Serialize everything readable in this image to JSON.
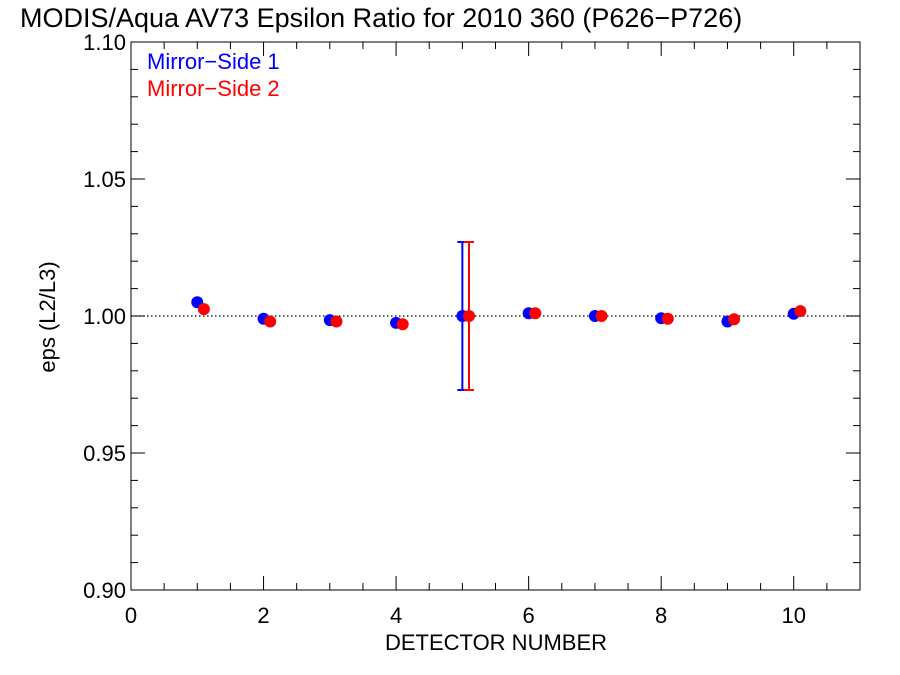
{
  "chart_data": {
    "type": "scatter",
    "title": "MODIS/Aqua AV73 Epsilon Ratio for 2010 360 (P626−P726)",
    "xlabel": "DETECTOR NUMBER",
    "ylabel": "eps (L2/L3)",
    "xlim": [
      0,
      11
    ],
    "ylim": [
      0.9,
      1.1
    ],
    "x_ticks": [
      0,
      2,
      4,
      6,
      8,
      10
    ],
    "x_tick_labels": [
      "0",
      "2",
      "4",
      "6",
      "8",
      "10"
    ],
    "y_ticks": [
      0.9,
      0.95,
      1.0,
      1.05,
      1.1
    ],
    "y_tick_labels": [
      "0.90",
      "0.95",
      "1.00",
      "1.05",
      "1.10"
    ],
    "reference_line": {
      "y": 1.0,
      "style": "dotted",
      "color": "#000000"
    },
    "grid": false,
    "legend_position": "top-left",
    "series": [
      {
        "name": "Mirror−Side 1",
        "color": "#0000ff",
        "x": [
          1,
          2,
          3,
          4,
          5,
          6,
          7,
          8,
          9,
          10
        ],
        "values": [
          1.005,
          0.999,
          0.9985,
          0.9975,
          1.0,
          1.001,
          1.0,
          0.9992,
          0.998,
          1.0008
        ],
        "error_bars": [
          {
            "x": 5,
            "low": 0.973,
            "high": 1.027
          }
        ]
      },
      {
        "name": "Mirror−Side 2",
        "color": "#ff0000",
        "x": [
          1.1,
          2.1,
          3.1,
          4.1,
          5.1,
          6.1,
          7.1,
          8.1,
          9.1,
          10.1
        ],
        "values": [
          1.0025,
          0.998,
          0.998,
          0.997,
          1.0,
          1.001,
          1.0,
          0.999,
          0.9988,
          1.0018
        ],
        "error_bars": [
          {
            "x": 5.1,
            "low": 0.973,
            "high": 1.027
          }
        ]
      }
    ]
  }
}
